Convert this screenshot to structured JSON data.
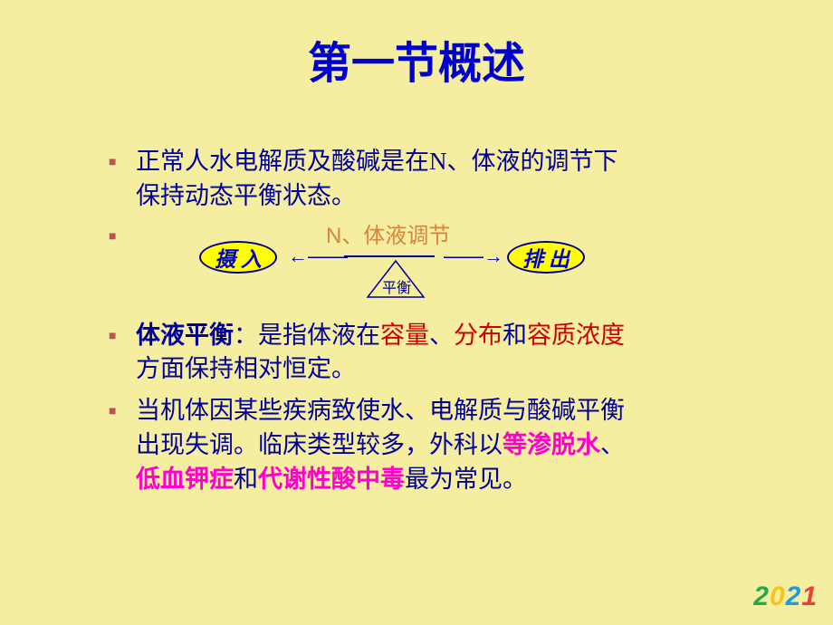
{
  "title": {
    "text": "第一节概述",
    "color": "#0000cc",
    "fontsize": 48
  },
  "colors": {
    "background": "#f5eda0",
    "bullet": "#b85450",
    "body_text": "#000099",
    "red_text": "#cc0000",
    "magenta_text": "#ff00cc",
    "diagram_label": "#d9843b",
    "ellipse_fill": "#ffff00",
    "ellipse_border": "#000099",
    "ellipse_text": "#0000cc",
    "arrow": "#000099",
    "triangle_border": "#000099",
    "triangle_label": "#000099"
  },
  "fontsizes": {
    "body": 27,
    "diagram_label": 24,
    "ellipse_text": 23,
    "arrow": 22,
    "triangle_label": 16
  },
  "bullets": {
    "item1": {
      "line1": "正常人水电解质及酸碱是在N、体液的调节下",
      "line2": "保持动态平衡状态。"
    },
    "diagram": {
      "top_label": "N、体液调节",
      "ellipse_left": "摄 入",
      "ellipse_right": "排 出",
      "arrow_left": "←——",
      "arrow_right": "——→",
      "triangle_text": "平衡",
      "ellipse_width": 86,
      "ellipse_height": 36,
      "triangle_height": 38
    },
    "item3": {
      "pre_bold": "体液平衡",
      "t1": "：是指体液在",
      "red1": "容量",
      "t2": "、",
      "red2": "分布",
      "t3": "和",
      "red3": "容质浓度",
      "line2": "方面保持相对恒定。"
    },
    "item4": {
      "t1": "当机体因某些疾病致使水、电解质与酸碱平衡",
      "t2": "出现失调。临床类型较多，外科以",
      "m1": "等渗脱水",
      "t3": "、",
      "m2": "低血钾症",
      "t4": "和",
      "m3": "代谢性酸中毒",
      "t5": "最为常见。"
    }
  },
  "year": {
    "d1": "2",
    "d2": "0",
    "d3": "2",
    "d4": "1",
    "c1": "#2aa84a",
    "c2": "#f5c518",
    "c3": "#1e9bd8",
    "c4": "#e8413c",
    "fontsize": 30
  }
}
